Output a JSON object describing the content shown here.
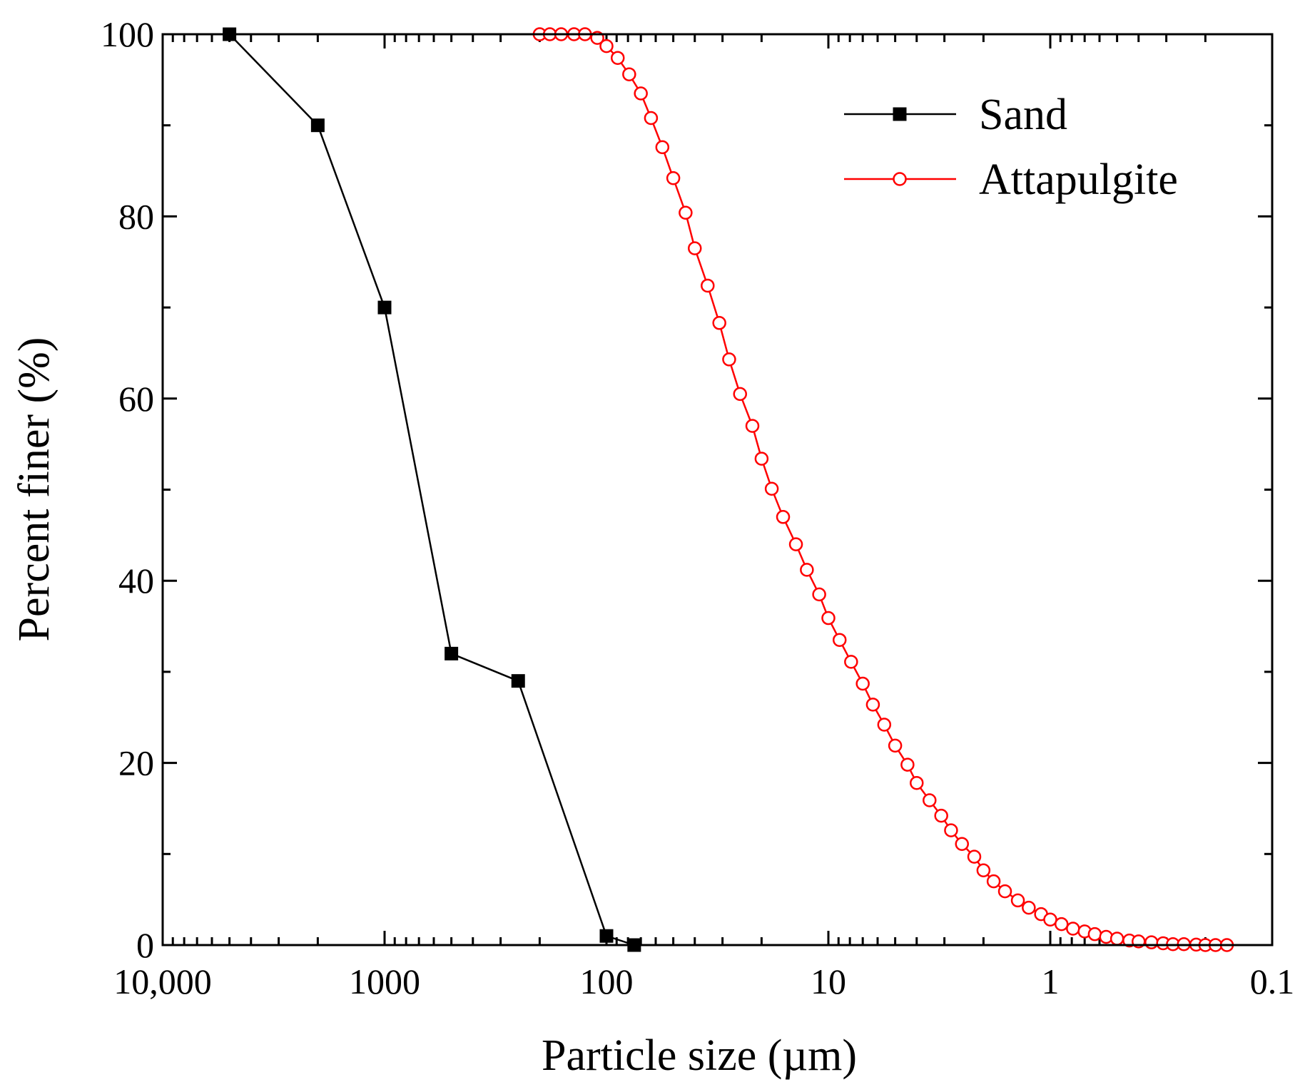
{
  "chart_data": {
    "type": "line",
    "title": "",
    "xlabel": "Particle size (µm)",
    "ylabel": "Percent finer (%)",
    "xscale": "log",
    "xreversed": true,
    "xlim": [
      10000,
      0.1
    ],
    "ylim": [
      0,
      100
    ],
    "xticks": [
      {
        "value": 10000,
        "label": "10,000"
      },
      {
        "value": 1000,
        "label": "1000"
      },
      {
        "value": 100,
        "label": "100"
      },
      {
        "value": 10,
        "label": "10"
      },
      {
        "value": 1,
        "label": "1"
      },
      {
        "value": 0.1,
        "label": "0.1"
      }
    ],
    "yticks": [
      {
        "value": 0,
        "label": "0"
      },
      {
        "value": 20,
        "label": "20"
      },
      {
        "value": 40,
        "label": "40"
      },
      {
        "value": 60,
        "label": "60"
      },
      {
        "value": 80,
        "label": "80"
      },
      {
        "value": 100,
        "label": "100"
      }
    ],
    "legend_position": "top-right",
    "series": [
      {
        "name": "Sand",
        "color": "#000000",
        "marker": "filled-square",
        "x": [
          5000,
          2000,
          1000,
          500,
          250,
          100,
          75
        ],
        "y": [
          100,
          90,
          70,
          32,
          29,
          1,
          0
        ]
      },
      {
        "name": "Attapulgite",
        "color": "#ff0000",
        "marker": "open-circle",
        "x": [
          200,
          180,
          160,
          140,
          125,
          110,
          100,
          89,
          79,
          70,
          63,
          56,
          50,
          44,
          40,
          35,
          31,
          28,
          25,
          22,
          20,
          18,
          16,
          14,
          12.5,
          11,
          10,
          8.9,
          7.9,
          7.0,
          6.3,
          5.6,
          5.0,
          4.4,
          4.0,
          3.5,
          3.1,
          2.8,
          2.5,
          2.2,
          2.0,
          1.8,
          1.6,
          1.4,
          1.25,
          1.1,
          1.0,
          0.89,
          0.79,
          0.7,
          0.63,
          0.56,
          0.5,
          0.44,
          0.4,
          0.35,
          0.31,
          0.28,
          0.25,
          0.22,
          0.2,
          0.18,
          0.16
        ],
        "y": [
          100,
          100,
          100,
          100,
          100,
          99.6,
          98.7,
          97.4,
          95.6,
          93.5,
          90.8,
          87.6,
          84.2,
          80.4,
          76.5,
          72.4,
          68.3,
          64.3,
          60.5,
          57.0,
          53.4,
          50.1,
          47.0,
          44.0,
          41.2,
          38.5,
          35.9,
          33.5,
          31.1,
          28.7,
          26.4,
          24.2,
          21.9,
          19.8,
          17.8,
          15.9,
          14.2,
          12.6,
          11.1,
          9.7,
          8.2,
          7.0,
          5.9,
          4.9,
          4.1,
          3.4,
          2.8,
          2.3,
          1.8,
          1.5,
          1.2,
          0.9,
          0.7,
          0.5,
          0.4,
          0.3,
          0.2,
          0.1,
          0.1,
          0.05,
          0.0,
          0.0,
          0.0
        ]
      }
    ]
  }
}
